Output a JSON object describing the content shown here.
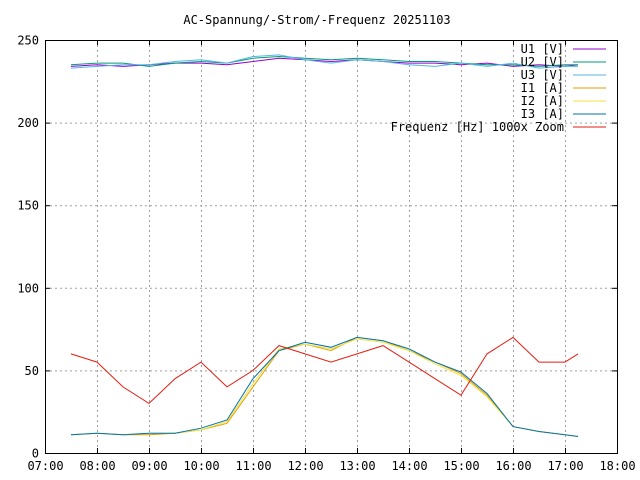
{
  "chart_data": {
    "type": "line",
    "title": "AC-Spannung/-Strom/-Frequenz 20251103",
    "xlabel": "",
    "ylabel": "",
    "xlim": [
      "07:00",
      "18:00"
    ],
    "ylim": [
      0,
      250
    ],
    "grid": true,
    "legend_position": "top-right",
    "x_ticks": [
      "07:00",
      "08:00",
      "09:00",
      "10:00",
      "11:00",
      "12:00",
      "13:00",
      "14:00",
      "15:00",
      "16:00",
      "17:00",
      "18:00"
    ],
    "y_ticks": [
      "0",
      "50",
      "100",
      "150",
      "200",
      "250"
    ],
    "x": [
      "07:30",
      "08:00",
      "08:30",
      "09:00",
      "09:30",
      "10:00",
      "10:30",
      "11:00",
      "11:30",
      "12:00",
      "12:30",
      "13:00",
      "13:30",
      "14:00",
      "14:30",
      "15:00",
      "15:30",
      "16:00",
      "16:30",
      "17:00",
      "17:15"
    ],
    "series": [
      {
        "name": "U1 [V]",
        "color": "#9400d3",
        "values": [
          234,
          235,
          234,
          235,
          236,
          236,
          235,
          237,
          239,
          238,
          237,
          238,
          237,
          236,
          236,
          235,
          236,
          234,
          235,
          234,
          235
        ]
      },
      {
        "name": "U2 [V]",
        "color": "#009e73",
        "values": [
          235,
          236,
          236,
          234,
          236,
          237,
          236,
          239,
          240,
          239,
          238,
          239,
          238,
          237,
          237,
          236,
          235,
          235,
          234,
          235,
          235
        ]
      },
      {
        "name": "U3 [V]",
        "color": "#56b4e9",
        "values": [
          233,
          234,
          235,
          235,
          237,
          238,
          236,
          240,
          241,
          238,
          236,
          238,
          237,
          235,
          234,
          236,
          234,
          236,
          233,
          234,
          234
        ]
      },
      {
        "name": "I1 [A]",
        "color": "#e69f00",
        "values": [
          11,
          12,
          11,
          11,
          12,
          14,
          18,
          40,
          62,
          66,
          62,
          70,
          68,
          62,
          55,
          48,
          35,
          16,
          13,
          11,
          10
        ]
      },
      {
        "name": "I2 [A]",
        "color": "#f0e442",
        "values": [
          11,
          12,
          11,
          12,
          12,
          14,
          19,
          42,
          63,
          66,
          63,
          69,
          67,
          62,
          54,
          47,
          34,
          16,
          13,
          11,
          10
        ]
      },
      {
        "name": "I3 [A]",
        "color": "#0072b2",
        "values": [
          11,
          12,
          11,
          12,
          12,
          15,
          20,
          45,
          62,
          67,
          64,
          70,
          68,
          63,
          55,
          49,
          36,
          16,
          13,
          11,
          10
        ]
      },
      {
        "name": "Frequenz [Hz] 1000x Zoom",
        "color": "#e51e10",
        "values": [
          60,
          55,
          40,
          30,
          45,
          55,
          40,
          50,
          65,
          60,
          55,
          60,
          65,
          55,
          45,
          35,
          60,
          70,
          55,
          55,
          60
        ]
      }
    ]
  }
}
